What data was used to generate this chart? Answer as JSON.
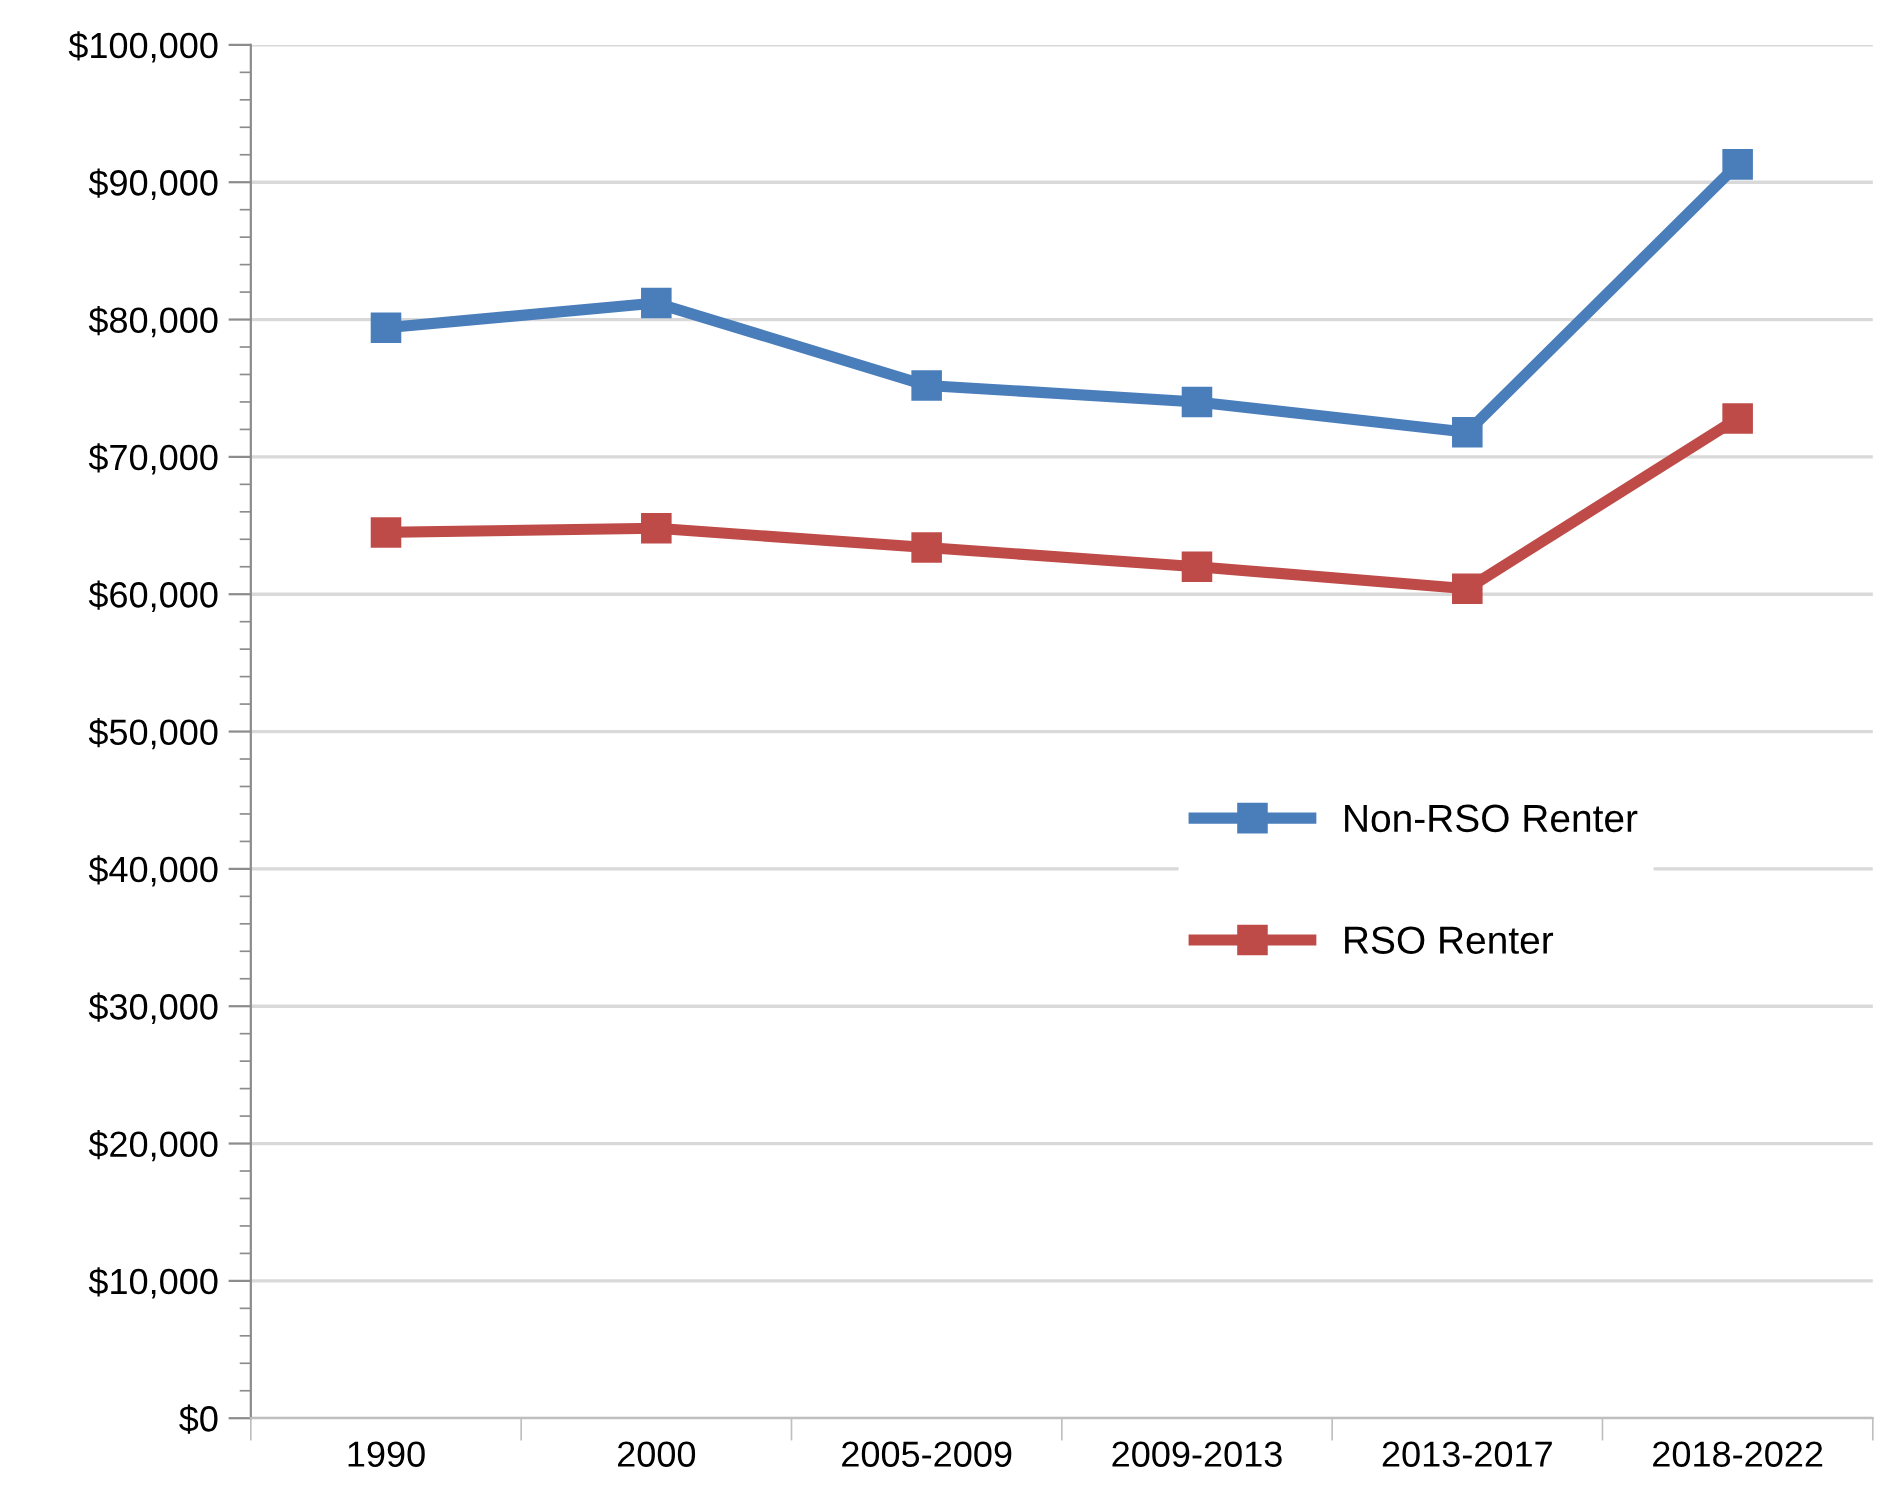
{
  "chart_data": {
    "type": "line",
    "categories": [
      "1990",
      "2000",
      "2005-2009",
      "2009-2013",
      "2013-2017",
      "2018-2022"
    ],
    "series": [
      {
        "name": "Non-RSO Renter",
        "color": "#4a7ebb",
        "values": [
          79400,
          81200,
          75200,
          74000,
          71800,
          91300
        ]
      },
      {
        "name": "RSO Renter",
        "color": "#be4b48",
        "values": [
          64500,
          64800,
          63400,
          62000,
          60400,
          72800
        ]
      }
    ],
    "ylim": [
      0,
      100000
    ],
    "yticks": [
      {
        "value": 0,
        "label": "$0"
      },
      {
        "value": 10000,
        "label": "$10,000"
      },
      {
        "value": 20000,
        "label": "$20,000"
      },
      {
        "value": 30000,
        "label": "$30,000"
      },
      {
        "value": 40000,
        "label": "$40,000"
      },
      {
        "value": 50000,
        "label": "$50,000"
      },
      {
        "value": 60000,
        "label": "$60,000"
      },
      {
        "value": 70000,
        "label": "$70,000"
      },
      {
        "value": 80000,
        "label": "$80,000"
      },
      {
        "value": 90000,
        "label": "$90,000"
      },
      {
        "value": 100000,
        "label": "$100,000"
      }
    ],
    "grid": "y",
    "legend": "right",
    "marker": "square",
    "line_style": "solid"
  }
}
